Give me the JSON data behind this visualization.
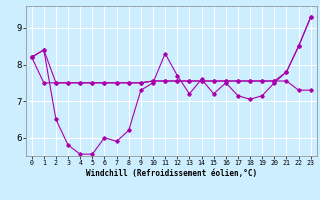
{
  "title": "Windchill (Refroidissement éolien,°C)",
  "background_color": "#cceeff",
  "line_color": "#aa00aa",
  "grid_color": "#ffffff",
  "xlim": [
    -0.5,
    23.5
  ],
  "ylim": [
    5.5,
    9.6
  ],
  "xticks": [
    0,
    1,
    2,
    3,
    4,
    5,
    6,
    7,
    8,
    9,
    10,
    11,
    12,
    13,
    14,
    15,
    16,
    17,
    18,
    19,
    20,
    21,
    22,
    23
  ],
  "yticks": [
    6,
    7,
    8,
    9
  ],
  "line_zigzag": [
    8.2,
    8.4,
    6.5,
    5.8,
    5.55,
    5.55,
    6.0,
    5.9,
    6.2,
    7.3,
    7.5,
    8.3,
    7.7,
    7.2,
    7.6,
    7.2,
    7.5,
    7.15,
    7.05,
    7.15,
    7.5,
    7.8,
    8.5,
    9.3
  ],
  "line_flat": [
    8.2,
    7.5,
    7.5,
    7.5,
    7.5,
    7.5,
    7.5,
    7.5,
    7.5,
    7.5,
    7.55,
    7.55,
    7.55,
    7.55,
    7.55,
    7.55,
    7.55,
    7.55,
    7.55,
    7.55,
    7.55,
    7.55,
    7.3,
    7.3
  ],
  "line_trend": [
    8.2,
    8.4,
    7.5,
    7.5,
    7.5,
    7.5,
    7.5,
    7.5,
    7.5,
    7.5,
    7.55,
    7.55,
    7.55,
    7.55,
    7.55,
    7.55,
    7.55,
    7.55,
    7.55,
    7.55,
    7.55,
    7.8,
    8.5,
    9.3
  ]
}
